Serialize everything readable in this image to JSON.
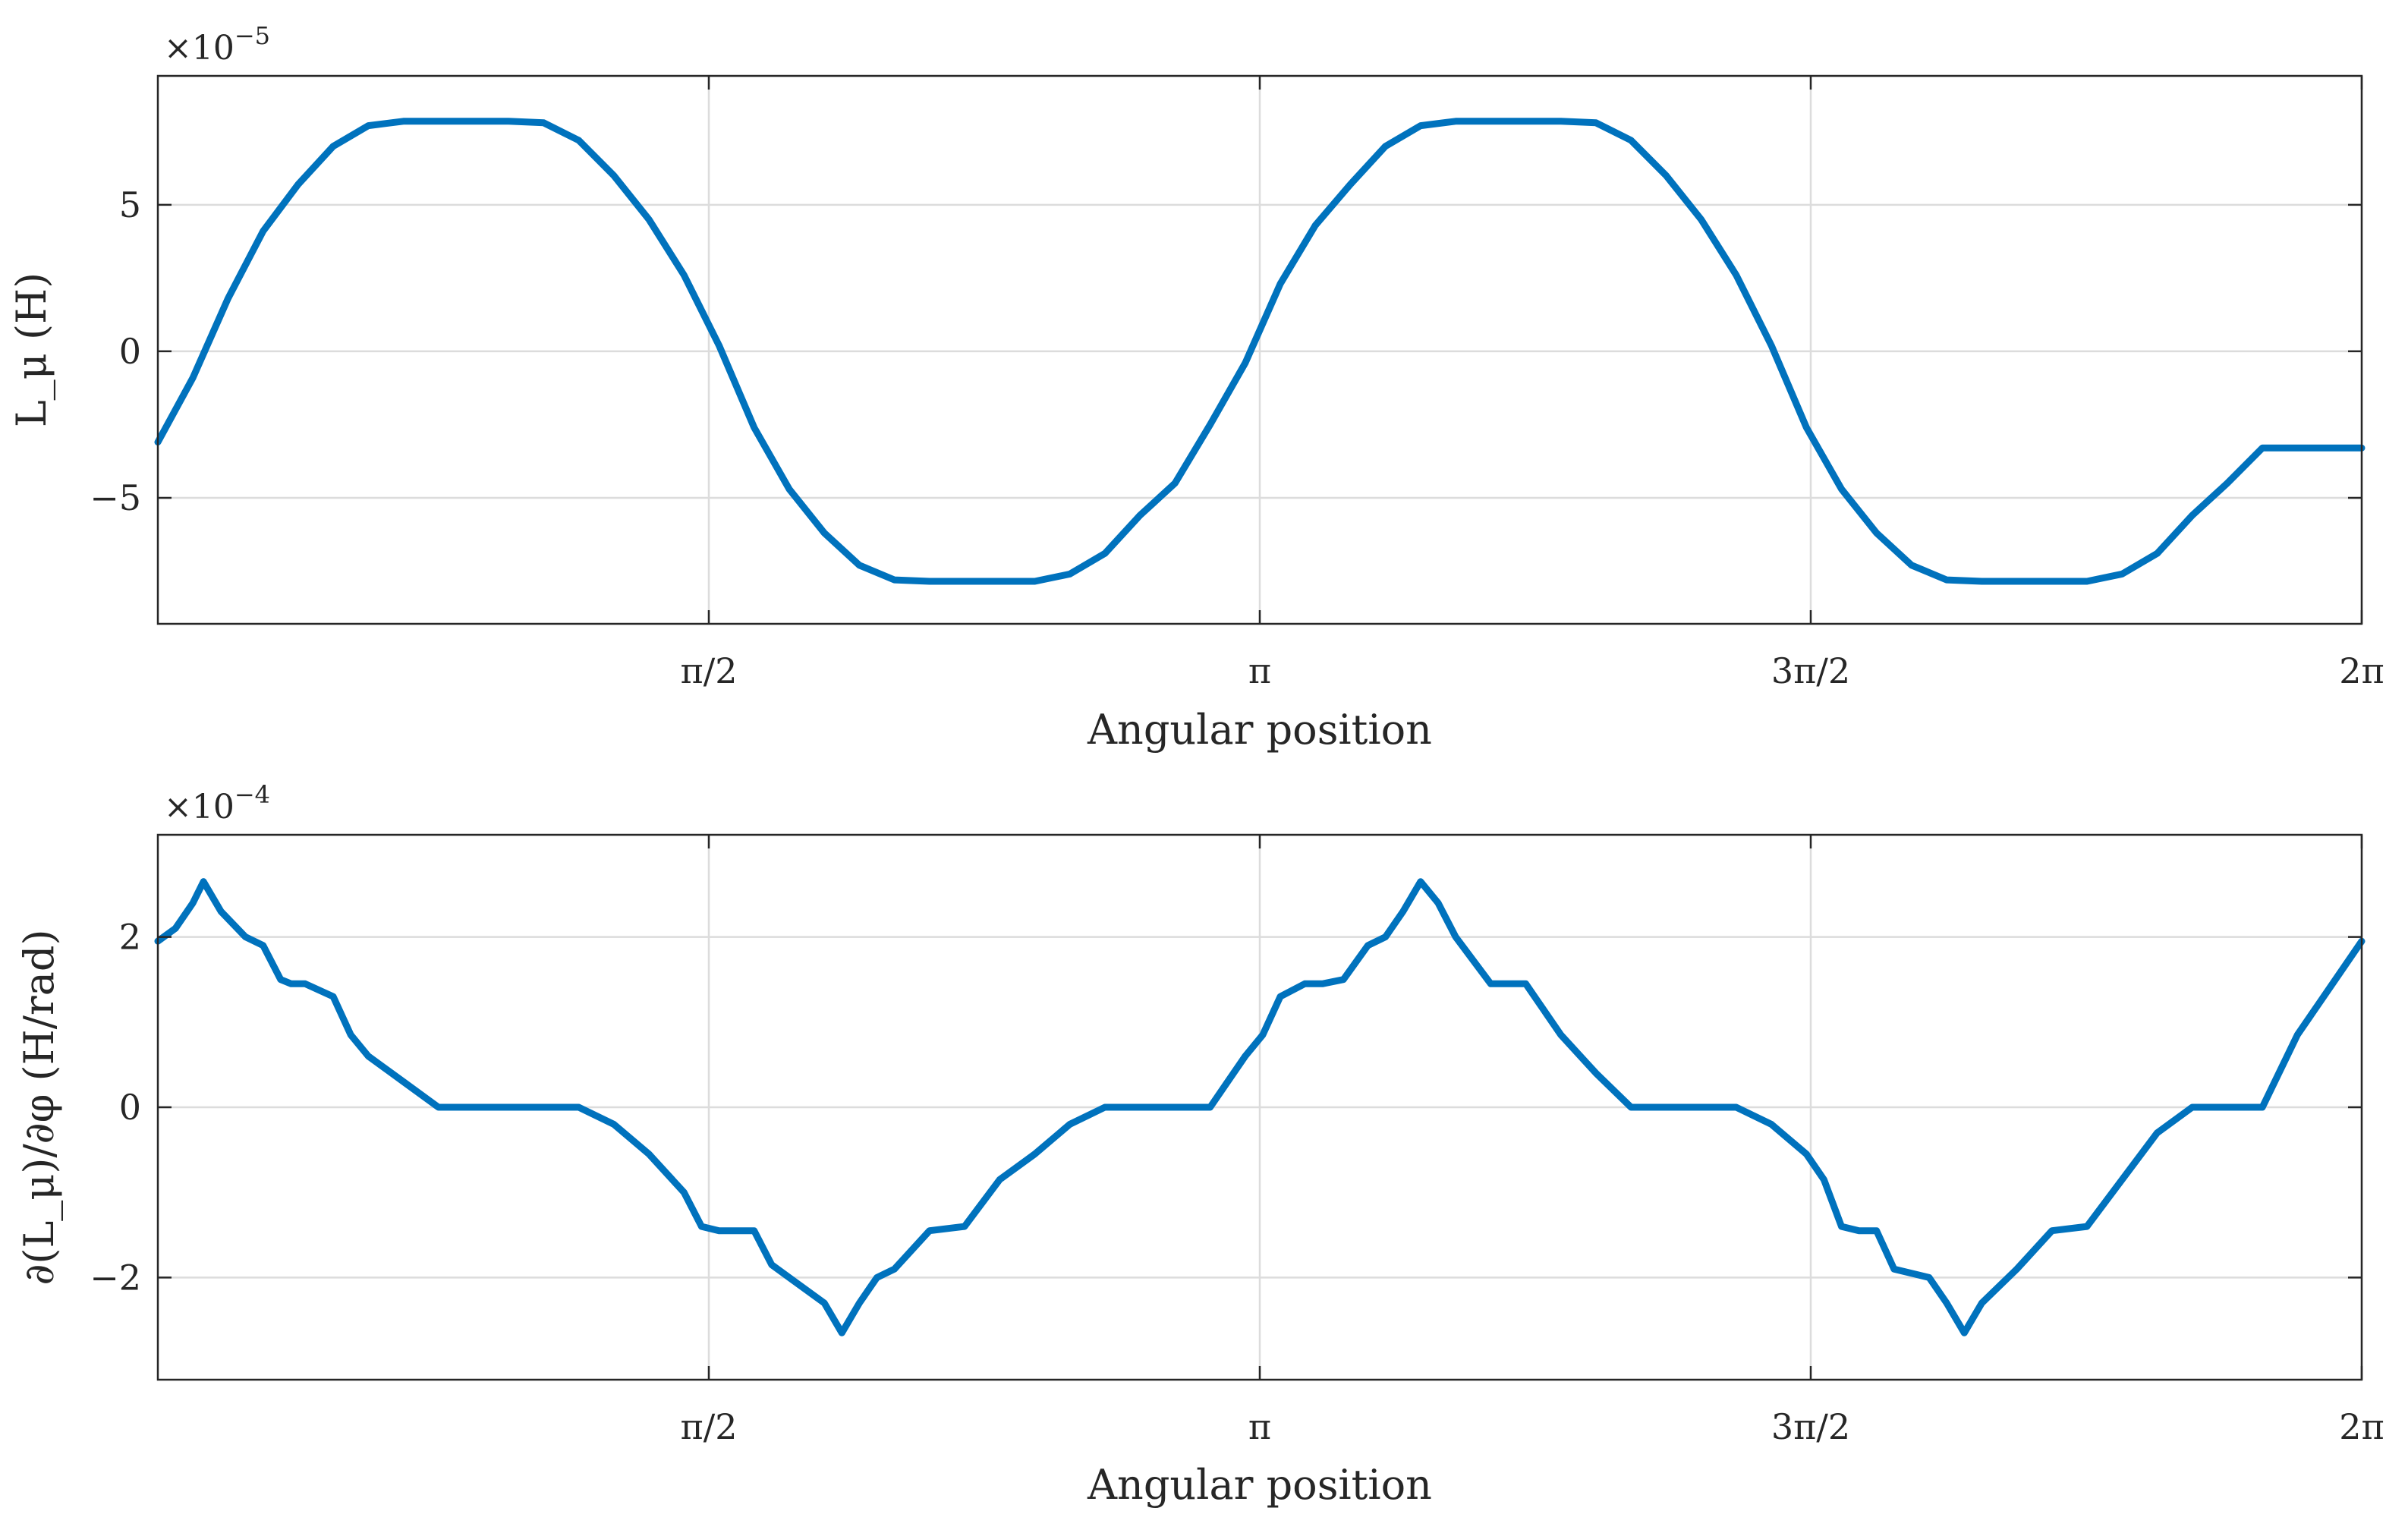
{
  "colors": {
    "series": "#0072bd",
    "axes": "#262626",
    "grid": "#dcdcdc"
  },
  "chart_data": [
    {
      "type": "line",
      "ylabel": "L_μ (H)",
      "xlabel": "Angular position",
      "exponent_label": {
        "base": "×10",
        "power": "−5"
      },
      "xlim": [
        0,
        6.2832
      ],
      "ylim": [
        -9.3,
        9.4
      ],
      "grid": true,
      "xticks": [
        {
          "value": 1.5708,
          "label": "π/2"
        },
        {
          "value": 3.1416,
          "label": "π"
        },
        {
          "value": 4.7124,
          "label": "3π/2"
        },
        {
          "value": 6.2832,
          "label": "2π"
        }
      ],
      "yticks": [
        {
          "value": -5,
          "label": "−5"
        },
        {
          "value": 0,
          "label": "0"
        },
        {
          "value": 5,
          "label": "5"
        }
      ],
      "series": [
        {
          "x": [
            0,
            0.1,
            0.2,
            0.3,
            0.4,
            0.5,
            0.6,
            0.7,
            0.8,
            0.9,
            1.0,
            1.1,
            1.2,
            1.3,
            1.4,
            1.5,
            1.6,
            1.7,
            1.8,
            1.9,
            2.0,
            2.1,
            2.2,
            2.3,
            2.4,
            2.5,
            2.6,
            2.7,
            2.8,
            2.9,
            3.0,
            3.1,
            3.2,
            3.3,
            3.4,
            3.5,
            3.6,
            3.7,
            3.8,
            3.9,
            4.0,
            4.1,
            4.2,
            4.3,
            4.4,
            4.5,
            4.6,
            4.7,
            4.8,
            4.9,
            5.0,
            5.1,
            5.2,
            5.3,
            5.4,
            5.5,
            5.6,
            5.7,
            5.8,
            5.9,
            6.0,
            6.1,
            6.2,
            6.2832
          ],
          "values": [
            -3.1,
            -0.9,
            1.8,
            4.1,
            5.7,
            7.0,
            7.7,
            7.85,
            7.85,
            7.85,
            7.85,
            7.8,
            7.2,
            6.0,
            4.5,
            2.6,
            0.2,
            -2.6,
            -4.7,
            -6.2,
            -7.3,
            -7.8,
            -7.85,
            -7.85,
            -7.85,
            -7.85,
            -7.6,
            -6.9,
            -5.6,
            -4.5,
            -2.5,
            -0.4,
            2.3,
            4.3,
            5.7,
            7.0,
            7.7,
            7.85,
            7.85,
            7.85,
            7.85,
            7.8,
            7.2,
            6.0,
            4.5,
            2.6,
            0.2,
            -2.6,
            -4.7,
            -6.2,
            -7.3,
            -7.8,
            -7.85,
            -7.85,
            -7.85,
            -7.85,
            -7.6,
            -6.9,
            -5.6,
            -4.5,
            -3.3,
            -3.3,
            -3.3,
            -3.3
          ]
        }
      ]
    },
    {
      "type": "line",
      "ylabel": "∂(L_μ)/∂φ (H/rad)",
      "xlabel": "Angular position",
      "exponent_label": {
        "base": "×10",
        "power": "−4"
      },
      "xlim": [
        0,
        6.2832
      ],
      "ylim": [
        -3.2,
        3.2
      ],
      "grid": true,
      "xticks": [
        {
          "value": 1.5708,
          "label": "π/2"
        },
        {
          "value": 3.1416,
          "label": "π"
        },
        {
          "value": 4.7124,
          "label": "3π/2"
        },
        {
          "value": 6.2832,
          "label": "2π"
        }
      ],
      "yticks": [
        {
          "value": -2,
          "label": "−2"
        },
        {
          "value": 0,
          "label": "0"
        },
        {
          "value": 2,
          "label": "2"
        }
      ],
      "series": [
        {
          "x": [
            0,
            0.05,
            0.1,
            0.13,
            0.18,
            0.25,
            0.3,
            0.35,
            0.38,
            0.42,
            0.5,
            0.55,
            0.6,
            0.7,
            0.8,
            0.9,
            1.0,
            1.1,
            1.2,
            1.3,
            1.4,
            1.5,
            1.55,
            1.6,
            1.7,
            1.75,
            1.8,
            1.9,
            1.95,
            2.0,
            2.05,
            2.1,
            2.2,
            2.3,
            2.4,
            2.5,
            2.6,
            2.7,
            2.8,
            2.9,
            3.0,
            3.05,
            3.1,
            3.15,
            3.2,
            3.27,
            3.32,
            3.38,
            3.45,
            3.5,
            3.55,
            3.6,
            3.65,
            3.7,
            3.8,
            3.9,
            4.0,
            4.1,
            4.2,
            4.3,
            4.4,
            4.5,
            4.6,
            4.7,
            4.75,
            4.8,
            4.85,
            4.9,
            4.95,
            5.05,
            5.1,
            5.15,
            5.2,
            5.3,
            5.4,
            5.5,
            5.6,
            5.7,
            5.8,
            5.9,
            6.0,
            6.1,
            6.2,
            6.2832
          ],
          "values": [
            1.95,
            2.1,
            2.4,
            2.65,
            2.3,
            2.0,
            1.9,
            1.5,
            1.45,
            1.45,
            1.3,
            0.85,
            0.6,
            0.3,
            0,
            0,
            0,
            0,
            0,
            -0.2,
            -0.55,
            -1.0,
            -1.4,
            -1.45,
            -1.45,
            -1.85,
            -2.0,
            -2.3,
            -2.65,
            -2.3,
            -2.0,
            -1.9,
            -1.45,
            -1.4,
            -0.85,
            -0.55,
            -0.2,
            0,
            0,
            0,
            0,
            0.3,
            0.6,
            0.85,
            1.3,
            1.45,
            1.45,
            1.5,
            1.9,
            2.0,
            2.3,
            2.65,
            2.4,
            2.0,
            1.45,
            1.45,
            0.85,
            0.4,
            0,
            0,
            0,
            0,
            -0.2,
            -0.55,
            -0.85,
            -1.4,
            -1.45,
            -1.45,
            -1.9,
            -2.0,
            -2.3,
            -2.65,
            -2.3,
            -1.9,
            -1.45,
            -1.4,
            -0.85,
            -0.3,
            0,
            0,
            0,
            0.85,
            1.45,
            1.95
          ]
        }
      ]
    }
  ]
}
